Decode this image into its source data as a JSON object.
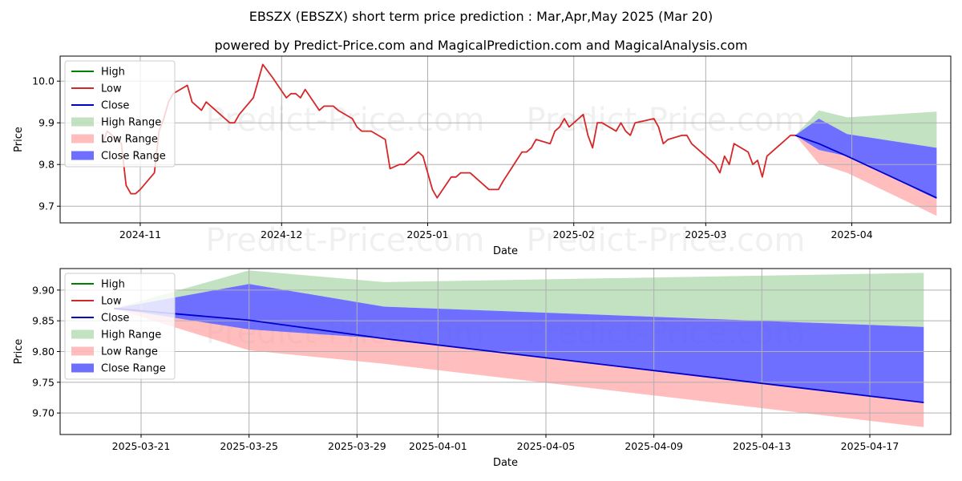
{
  "title": "EBSZX (EBSZX) short term price prediction : Mar,Apr,May 2025 (Mar 20)",
  "subtitle": "powered by Predict-Price.com and MagicalPrediction.com and MagicalAnalysis.com",
  "watermark": "Predict-Price.com",
  "colors": {
    "high": "#008000",
    "low": "#d62728",
    "close": "#0000cd",
    "high_range": "#8fca8f",
    "low_range": "#ff9999",
    "close_range": "#5555ff"
  },
  "legend": [
    "High",
    "Low",
    "Close",
    "High Range",
    "Low Range",
    "Close Range"
  ],
  "chart_data": [
    {
      "type": "line",
      "xlabel": "Date",
      "ylabel": "Price",
      "xlim": [
        "2024-10-15",
        "2025-04-22"
      ],
      "ylim": [
        9.66,
        10.06
      ],
      "yticks": [
        9.7,
        9.8,
        9.9,
        10.0
      ],
      "ytick_labels": [
        "9.7",
        "9.8",
        "9.9",
        "10.0"
      ],
      "xticks": [
        "2024-11-01",
        "2024-12-01",
        "2025-01-01",
        "2025-02-01",
        "2025-03-01",
        "2025-04-01"
      ],
      "xtick_labels": [
        "2024-11",
        "2024-12",
        "2025-01",
        "2025-02",
        "2025-03",
        "2025-04"
      ],
      "grid": true,
      "legend_position": "top-left",
      "series": [
        {
          "name": "Low",
          "x": [
            "2024-10-24",
            "2024-10-25",
            "2024-10-26",
            "2024-10-27",
            "2024-10-28",
            "2024-10-29",
            "2024-10-30",
            "2024-10-31",
            "2024-11-01",
            "2024-11-04",
            "2024-11-05",
            "2024-11-06",
            "2024-11-07",
            "2024-11-08",
            "2024-11-11",
            "2024-11-12",
            "2024-11-13",
            "2024-11-14",
            "2024-11-15",
            "2024-11-18",
            "2024-11-19",
            "2024-11-20",
            "2024-11-21",
            "2024-11-22",
            "2024-11-25",
            "2024-11-26",
            "2024-11-27",
            "2024-11-29",
            "2024-12-02",
            "2024-12-03",
            "2024-12-04",
            "2024-12-05",
            "2024-12-06",
            "2024-12-09",
            "2024-12-10",
            "2024-12-11",
            "2024-12-12",
            "2024-12-13",
            "2024-12-16",
            "2024-12-17",
            "2024-12-18",
            "2024-12-19",
            "2024-12-20",
            "2024-12-23",
            "2024-12-24",
            "2024-12-26",
            "2024-12-27",
            "2024-12-30",
            "2024-12-31",
            "2025-01-02",
            "2025-01-03",
            "2025-01-06",
            "2025-01-07",
            "2025-01-08",
            "2025-01-10",
            "2025-01-13",
            "2025-01-14",
            "2025-01-15",
            "2025-01-16",
            "2025-01-17",
            "2025-01-21",
            "2025-01-22",
            "2025-01-23",
            "2025-01-24",
            "2025-01-27",
            "2025-01-28",
            "2025-01-29",
            "2025-01-30",
            "2025-01-31",
            "2025-02-03",
            "2025-02-04",
            "2025-02-05",
            "2025-02-06",
            "2025-02-07",
            "2025-02-10",
            "2025-02-11",
            "2025-02-12",
            "2025-02-13",
            "2025-02-14",
            "2025-02-18",
            "2025-02-19",
            "2025-02-20",
            "2025-02-21",
            "2025-02-24",
            "2025-02-25",
            "2025-02-26",
            "2025-02-27",
            "2025-02-28",
            "2025-03-03",
            "2025-03-04",
            "2025-03-05",
            "2025-03-06",
            "2025-03-07",
            "2025-03-10",
            "2025-03-11",
            "2025-03-12",
            "2025-03-13",
            "2025-03-14",
            "2025-03-17",
            "2025-03-18",
            "2025-03-19",
            "2025-03-20"
          ],
          "values": [
            9.85,
            9.88,
            9.87,
            9.86,
            9.85,
            9.75,
            9.73,
            9.73,
            9.74,
            9.78,
            9.88,
            9.91,
            9.95,
            9.97,
            9.99,
            9.95,
            9.94,
            9.93,
            9.95,
            9.92,
            9.91,
            9.9,
            9.9,
            9.92,
            9.96,
            10.0,
            10.04,
            10.01,
            9.96,
            9.97,
            9.97,
            9.96,
            9.98,
            9.93,
            9.94,
            9.94,
            9.94,
            9.93,
            9.91,
            9.89,
            9.88,
            9.88,
            9.88,
            9.86,
            9.79,
            9.8,
            9.8,
            9.83,
            9.82,
            9.74,
            9.72,
            9.77,
            9.77,
            9.78,
            9.78,
            9.75,
            9.74,
            9.74,
            9.74,
            9.76,
            9.83,
            9.83,
            9.84,
            9.86,
            9.85,
            9.88,
            9.89,
            9.91,
            9.89,
            9.92,
            9.87,
            9.84,
            9.9,
            9.9,
            9.88,
            9.9,
            9.88,
            9.87,
            9.9,
            9.91,
            9.89,
            9.85,
            9.86,
            9.87,
            9.87,
            9.85,
            9.84,
            9.83,
            9.8,
            9.78,
            9.82,
            9.8,
            9.85,
            9.83,
            9.8,
            9.81,
            9.77,
            9.82,
            9.85,
            9.86,
            9.87,
            9.87
          ]
        },
        {
          "name": "Close",
          "x": [
            "2025-03-20",
            "2025-03-25",
            "2025-03-31",
            "2025-04-19"
          ],
          "values": [
            9.87,
            9.85,
            9.82,
            9.72
          ]
        },
        {
          "name": "High Range",
          "x": [
            "2025-03-20",
            "2025-03-25",
            "2025-03-31",
            "2025-04-19"
          ],
          "upper": [
            9.87,
            9.93,
            9.913,
            9.927
          ],
          "lower": [
            9.87,
            9.91,
            9.873,
            9.84
          ]
        },
        {
          "name": "Close Range",
          "x": [
            "2025-03-20",
            "2025-03-25",
            "2025-03-31",
            "2025-04-19"
          ],
          "upper": [
            9.87,
            9.91,
            9.873,
            9.84
          ],
          "lower": [
            9.87,
            9.835,
            9.82,
            9.717
          ]
        },
        {
          "name": "Low Range",
          "x": [
            "2025-03-20",
            "2025-03-25",
            "2025-03-31",
            "2025-04-19"
          ],
          "upper": [
            9.87,
            9.835,
            9.82,
            9.717
          ],
          "lower": [
            9.87,
            9.802,
            9.78,
            9.677
          ]
        }
      ]
    },
    {
      "type": "line",
      "xlabel": "Date",
      "ylabel": "Price",
      "xlim": [
        "2025-03-18",
        "2025-04-20"
      ],
      "ylim": [
        9.665,
        9.935
      ],
      "yticks": [
        9.7,
        9.75,
        9.8,
        9.85,
        9.9
      ],
      "ytick_labels": [
        "9.70",
        "9.75",
        "9.80",
        "9.85",
        "9.90"
      ],
      "xticks": [
        "2025-03-21",
        "2025-03-25",
        "2025-03-29",
        "2025-04-01",
        "2025-04-05",
        "2025-04-09",
        "2025-04-13",
        "2025-04-17"
      ],
      "xtick_labels": [
        "2025-03-21",
        "2025-03-25",
        "2025-03-29",
        "2025-04-01",
        "2025-04-05",
        "2025-04-09",
        "2025-04-13",
        "2025-04-17"
      ],
      "grid": true,
      "legend_position": "top-left",
      "series": [
        {
          "name": "Close",
          "x": [
            "2025-03-20",
            "2025-03-25",
            "2025-03-30",
            "2025-04-19"
          ],
          "values": [
            9.87,
            9.851,
            9.821,
            9.717
          ]
        },
        {
          "name": "High Range",
          "x": [
            "2025-03-20",
            "2025-03-25",
            "2025-03-30",
            "2025-04-19"
          ],
          "upper": [
            9.87,
            9.932,
            9.913,
            9.928
          ],
          "lower": [
            9.87,
            9.91,
            9.873,
            9.84
          ]
        },
        {
          "name": "Close Range",
          "x": [
            "2025-03-20",
            "2025-03-25",
            "2025-03-30",
            "2025-04-19"
          ],
          "upper": [
            9.87,
            9.91,
            9.873,
            9.84
          ],
          "lower": [
            9.87,
            9.836,
            9.821,
            9.717
          ]
        },
        {
          "name": "Low Range",
          "x": [
            "2025-03-20",
            "2025-03-25",
            "2025-03-30",
            "2025-04-19"
          ],
          "upper": [
            9.87,
            9.836,
            9.821,
            9.717
          ],
          "lower": [
            9.87,
            9.802,
            9.78,
            9.677
          ]
        }
      ]
    }
  ]
}
